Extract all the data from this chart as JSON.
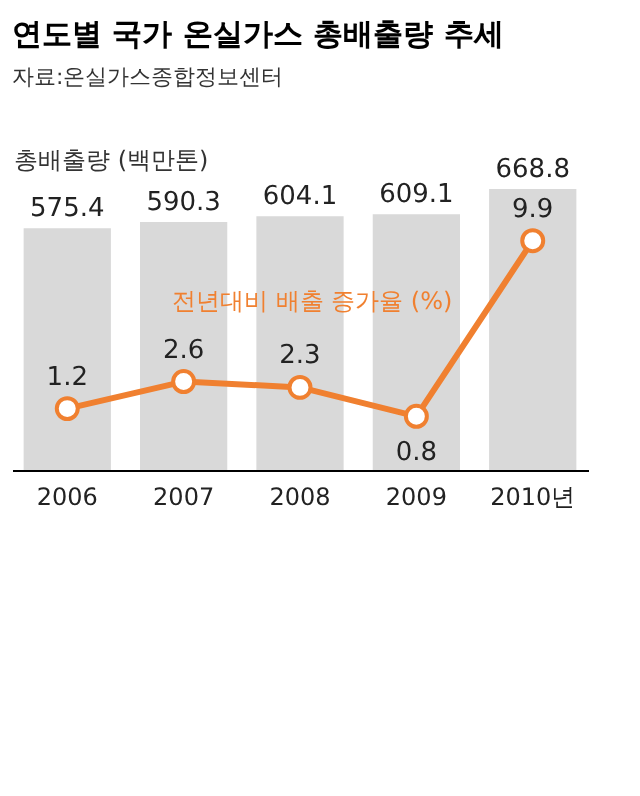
{
  "chart_data": {
    "type": "bar",
    "title": "연도별 국가 온실가스 총배출량 추세",
    "subtitle": "자료:온실가스종합정보센터",
    "categories": [
      "2006",
      "2007",
      "2008",
      "2009",
      "2010년"
    ],
    "series": [
      {
        "name": "총배출량 (백만톤)",
        "color": "#d9d9d9",
        "values": [
          575.4,
          590.3,
          604.1,
          609.1,
          668.8
        ]
      },
      {
        "name": "전년대비 배출 증가율 (%)",
        "type": "line",
        "axis": "y2",
        "color": "#f08030",
        "values": [
          1.2,
          2.6,
          2.3,
          0.8,
          9.9
        ]
      }
    ],
    "data_labels": true,
    "marker": "circle",
    "grid": false,
    "tick_labels": "x"
  }
}
